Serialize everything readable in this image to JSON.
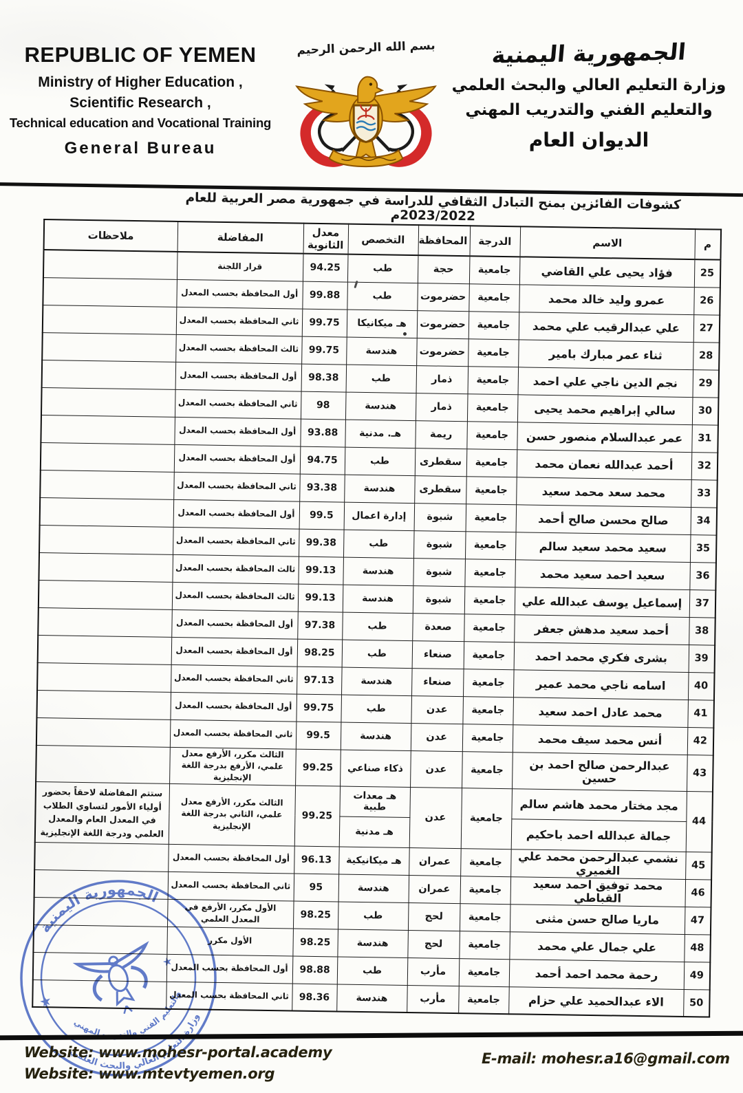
{
  "header": {
    "english": {
      "country": "REPUBLIC OF YEMEN",
      "ministry_line1": "Ministry of Higher Education ,",
      "ministry_line2": "Scientific Research ,",
      "ministry_line3": "Technical education and Vocational Training",
      "bureau": "General Bureau"
    },
    "emblem": {
      "basmala": "بسم الله الرحمن الرحيم"
    },
    "arabic": {
      "country": "الجمهورية اليمنية",
      "ministry_line1": "وزارة التعليم العالي والبحث العلمي",
      "ministry_line2": "والتعليم الفني والتدريب المهني",
      "bureau": "الديوان العام"
    }
  },
  "title": "كشوفات الفائزين بمنح التبادل الثقافي للدراسة في جمهورية مصر العربية للعام 2023/2022م",
  "table": {
    "headers": {
      "no": "م",
      "name": "الاسم",
      "degree": "الدرجة",
      "governorate": "المحافظة",
      "major": "التخصص",
      "average": "معدل الثانوية",
      "ranking": "المفاضلة",
      "notes": "ملاحظات"
    },
    "rows": [
      {
        "no": "25",
        "name": "فؤاد يحيى علي القاضي",
        "degree": "جامعية",
        "governorate": "حجة",
        "major": "طب",
        "average": "94.25",
        "ranking": "قرار اللجنة",
        "notes": ""
      },
      {
        "no": "26",
        "name": "عمرو وليد خالد محمد",
        "degree": "جامعية",
        "governorate": "حضرموت",
        "major": "طب",
        "average": "99.88",
        "ranking": "أول المحافظة بحسب المعدل",
        "notes": ""
      },
      {
        "no": "27",
        "name": "علي عبدالرقيب علي محمد",
        "degree": "جامعية",
        "governorate": "حضرموت",
        "major": "هـ ميكانيكا",
        "average": "99.75",
        "ranking": "ثاني المحافظة بحسب المعدل",
        "notes": ""
      },
      {
        "no": "28",
        "name": "ثناء عمر مبارك بامير",
        "degree": "جامعية",
        "governorate": "حضرموت",
        "major": "هندسة",
        "average": "99.75",
        "ranking": "ثالث المحافظة بحسب المعدل",
        "notes": ""
      },
      {
        "no": "29",
        "name": "نجم الدين ناجي علي احمد",
        "degree": "جامعية",
        "governorate": "ذمار",
        "major": "طب",
        "average": "98.38",
        "ranking": "أول المحافظة بحسب المعدل",
        "notes": ""
      },
      {
        "no": "30",
        "name": "سالي إبراهيم محمد يحيى",
        "degree": "جامعية",
        "governorate": "ذمار",
        "major": "هندسة",
        "average": "98",
        "ranking": "ثاني المحافظة بحسب المعدل",
        "notes": ""
      },
      {
        "no": "31",
        "name": "عمر عبدالسلام منصور حسن",
        "degree": "جامعية",
        "governorate": "ريمة",
        "major": "هـ. مدنية",
        "average": "93.88",
        "ranking": "أول المحافظة بحسب المعدل",
        "notes": ""
      },
      {
        "no": "32",
        "name": "أحمد عبدالله نعمان محمد",
        "degree": "جامعية",
        "governorate": "سقطرى",
        "major": "طب",
        "average": "94.75",
        "ranking": "أول المحافظة بحسب المعدل",
        "notes": ""
      },
      {
        "no": "33",
        "name": "محمد سعد محمد سعيد",
        "degree": "جامعية",
        "governorate": "سقطرى",
        "major": "هندسة",
        "average": "93.38",
        "ranking": "ثاني المحافظة بحسب المعدل",
        "notes": ""
      },
      {
        "no": "34",
        "name": "صالح محسن صالح أحمد",
        "degree": "جامعية",
        "governorate": "شبوة",
        "major": "إدارة اعمال",
        "average": "99.5",
        "ranking": "أول المحافظة بحسب المعدل",
        "notes": ""
      },
      {
        "no": "35",
        "name": "سعيد محمد سعيد سالم",
        "degree": "جامعية",
        "governorate": "شبوة",
        "major": "طب",
        "average": "99.38",
        "ranking": "ثاني المحافظة بحسب المعدل",
        "notes": ""
      },
      {
        "no": "36",
        "name": "سعيد احمد سعيد محمد",
        "degree": "جامعية",
        "governorate": "شبوة",
        "major": "هندسة",
        "average": "99.13",
        "ranking": "ثالث المحافظة بحسب المعدل",
        "notes": ""
      },
      {
        "no": "37",
        "name": "إسماعيل يوسف عبدالله علي",
        "degree": "جامعية",
        "governorate": "شبوة",
        "major": "هندسة",
        "average": "99.13",
        "ranking": "ثالث المحافظة بحسب المعدل",
        "notes": ""
      },
      {
        "no": "38",
        "name": "أحمد سعيد مدهش جعفر",
        "degree": "جامعية",
        "governorate": "صعدة",
        "major": "طب",
        "average": "97.38",
        "ranking": "أول المحافظة بحسب المعدل",
        "notes": ""
      },
      {
        "no": "39",
        "name": "بشرى فكري محمد احمد",
        "degree": "جامعية",
        "governorate": "صنعاء",
        "major": "طب",
        "average": "98.25",
        "ranking": "أول المحافظة بحسب المعدل",
        "notes": ""
      },
      {
        "no": "40",
        "name": "اسامه ناجي محمد عمير",
        "degree": "جامعية",
        "governorate": "صنعاء",
        "major": "هندسة",
        "average": "97.13",
        "ranking": "ثاني المحافظة بحسب المعدل",
        "notes": ""
      },
      {
        "no": "41",
        "name": "محمد عادل احمد سعيد",
        "degree": "جامعية",
        "governorate": "عدن",
        "major": "طب",
        "average": "99.75",
        "ranking": "أول المحافظة بحسب المعدل",
        "notes": ""
      },
      {
        "no": "42",
        "name": "أنس محمد سيف محمد",
        "degree": "جامعية",
        "governorate": "عدن",
        "major": "هندسة",
        "average": "99.5",
        "ranking": "ثاني المحافظة بحسب المعدل",
        "notes": ""
      },
      {
        "no": "43",
        "tall": true,
        "name": "عبدالرحمن صالح احمد بن حسين",
        "degree": "جامعية",
        "governorate": "عدن",
        "major": "ذكاء صناعي",
        "average": "99.25",
        "ranking": "الثالث مكرر، الأرفع معدل علمي، الأرفع بدرجة اللغة الإنجليزية",
        "notes": ""
      },
      {
        "no": "44",
        "names": [
          "مجد مختار محمد هاشم سالم",
          "جمالة عبدالله احمد باحكيم"
        ],
        "degree": "جامعية",
        "governorate": "عدن",
        "majors": [
          "هـ معدات طبية",
          "هـ مدنية"
        ],
        "average": "99.25",
        "ranking": "الثالث مكرر، الأرفع معدل علمي، الثاني بدرجة اللغة الإنجليزية",
        "notes": "ستتم المفاضلة لاحقاً بحضور أولياء الأمور لتساوي الطلاب في المعدل العام والمعدل العلمي ودرجة اللغة الإنجليزية"
      },
      {
        "no": "45",
        "name": "نشمي عبدالرحمن محمد علي الغميري",
        "degree": "جامعية",
        "governorate": "عمران",
        "major": "هـ ميكانيكية",
        "average": "96.13",
        "ranking": "أول المحافظة بحسب المعدل",
        "notes": ""
      },
      {
        "no": "46",
        "name": "محمد توفيق احمد سعيد القباطي",
        "degree": "جامعية",
        "governorate": "عمران",
        "major": "هندسة",
        "average": "95",
        "ranking": "ثاني المحافظة بحسب المعدل",
        "notes": ""
      },
      {
        "no": "47",
        "name": "ماريا صالح حسن مثنى",
        "degree": "جامعية",
        "governorate": "لحج",
        "major": "طب",
        "average": "98.25",
        "ranking": "الأول مكرر، الأرفع في المعدل العلمي",
        "notes": ""
      },
      {
        "no": "48",
        "name": "علي جمال علي محمد",
        "degree": "جامعية",
        "governorate": "لحج",
        "major": "هندسة",
        "average": "98.25",
        "ranking": "الأول مكرر",
        "notes": ""
      },
      {
        "no": "49",
        "name": "رحمة محمد احمد أحمد",
        "degree": "جامعية",
        "governorate": "مأرب",
        "major": "طب",
        "average": "98.88",
        "ranking": "أول المحافظة بحسب المعدل",
        "notes": ""
      },
      {
        "no": "50",
        "name": "الاء عبدالحميد علي حزام",
        "degree": "جامعية",
        "governorate": "مأرب",
        "major": "هندسة",
        "average": "98.36",
        "ranking": "ثاني المحافظة بحسب المعدل",
        "notes": ""
      }
    ]
  },
  "stamp": {
    "country": "الجمهورية اليمنية",
    "ministry_line1": "وزارة التعليم العالي والبحث العلمي",
    "ministry_line2": "والتعليم الفني والتدريب المهني"
  },
  "footer": {
    "website1": "Website: www.mohesr-portal.academy",
    "website2": "Website: www.mtevtyemen.org",
    "email": "E-mail: mohesr.a16@gmail.com"
  },
  "colors": {
    "stamp_blue": "#3f5fc2",
    "emblem_gold": "#e2a51d",
    "emblem_gold_dark": "#8a5200",
    "flag_red": "#d42a2a",
    "ink": "#171717"
  }
}
